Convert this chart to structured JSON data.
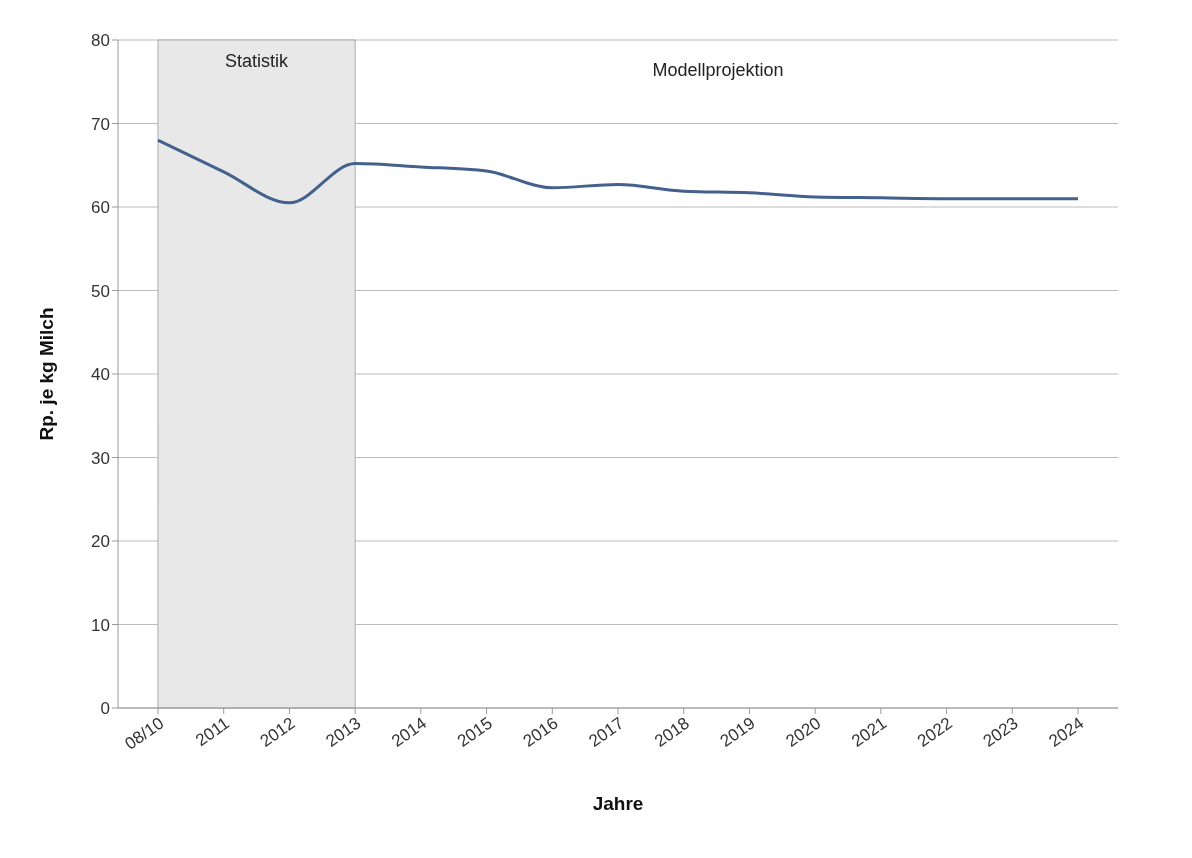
{
  "chart_data": {
    "type": "line",
    "xlabel": "Jahre",
    "ylabel": "Rp. je kg Milch",
    "categories": [
      "08/10",
      "2011",
      "2012",
      "2013",
      "2014",
      "2015",
      "2016",
      "2017",
      "2018",
      "2019",
      "2020",
      "2021",
      "2022",
      "2023",
      "2024"
    ],
    "series": [
      {
        "color": "#44608c",
        "values": [
          68,
          64.2,
          60.5,
          65.2,
          64.8,
          64.3,
          62.3,
          62.7,
          61.9,
          61.7,
          61.2,
          61.1,
          61,
          61,
          61
        ]
      }
    ],
    "ylim": [
      0,
      80
    ],
    "yticks": [
      0,
      10,
      20,
      30,
      40,
      50,
      60,
      70,
      80
    ],
    "grid": "y",
    "legend": false,
    "marker": "none",
    "line_style": "solid",
    "bands": [
      {
        "axis": "x",
        "from": "08/10",
        "to": "2013",
        "label": "Statistik",
        "color": "#e8e8e8"
      }
    ],
    "annotations": [
      "Modellprojektion"
    ]
  }
}
